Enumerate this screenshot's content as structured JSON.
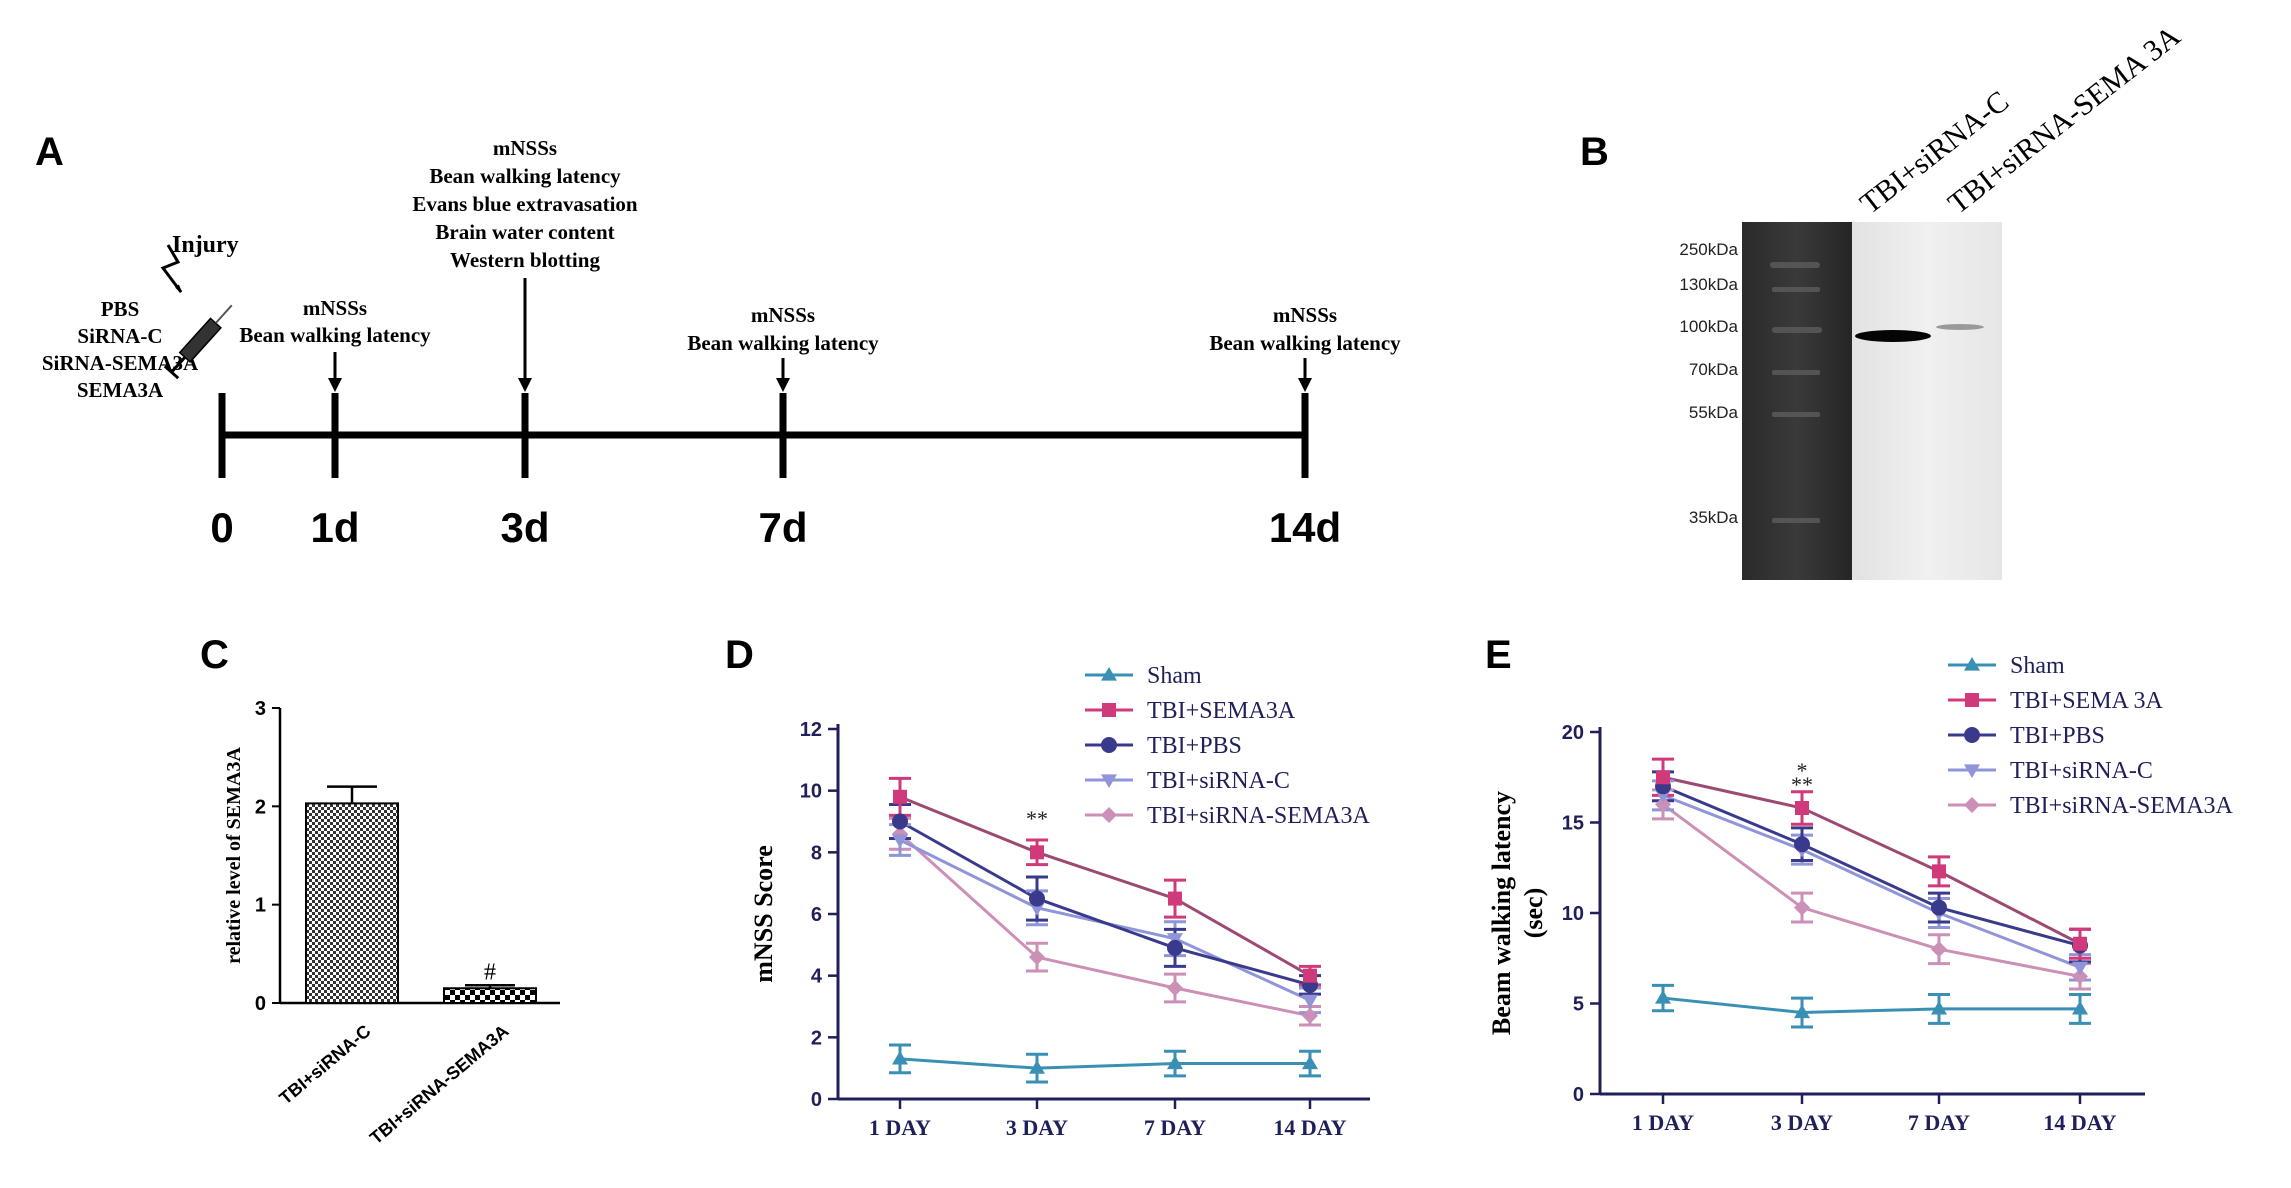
{
  "panels": {
    "a": "A",
    "b": "B",
    "c": "C",
    "d": "D",
    "e": "E"
  },
  "timeline": {
    "ticks": [
      "0",
      "1d",
      "3d",
      "7d",
      "14d"
    ],
    "treatments": [
      "PBS",
      "SiRNA-C",
      "SiRNA-SEMA3A",
      "SEMA3A"
    ],
    "injury_label": "Injury",
    "notes": {
      "d1": [
        "mNSSs",
        "Bean walking latency"
      ],
      "d3": [
        "mNSSs",
        "Bean walking latency",
        "Evans blue extravasation",
        "Brain water content",
        "Western blotting"
      ],
      "d7": [
        "mNSSs",
        "Bean walking latency"
      ],
      "d14": [
        "mNSSs",
        "Bean walking latency"
      ]
    }
  },
  "blot": {
    "lanes": [
      "TBI+siRNA-C",
      "TBI+siRNA-SEMA 3A"
    ],
    "markers": [
      "250kDa",
      "130kDa",
      "100kDa",
      "70kDa",
      "55kDa",
      "35kDa"
    ]
  },
  "colors": {
    "Sham": "#3a8fb5",
    "TBI+SEMA3A": "#d0397a",
    "TBI+PBS": "#3a3a8c",
    "TBI+siRNA-C": "#8f95d8",
    "TBI+siRNA-SEMA3A": "#cc8fb5",
    "line_sema3a": "#9c4a72"
  },
  "chart_data": [
    {
      "id": "C",
      "type": "bar",
      "categories": [
        "TBI+siRNA-C",
        "TBI+siRNA-SEMA3A"
      ],
      "values": [
        2.03,
        0.15
      ],
      "errors": [
        0.17,
        0.03
      ],
      "annotations": [
        "",
        "#"
      ],
      "ylabel": "relative level of SEMA3A",
      "ylim": [
        0,
        3
      ],
      "yticks": [
        "0",
        "1",
        "2",
        "3"
      ]
    },
    {
      "id": "D",
      "type": "line",
      "categories": [
        "1 DAY",
        "3 DAY",
        "7 DAY",
        "14 DAY"
      ],
      "ylabel": "mNSS Score",
      "ylim": [
        0,
        12
      ],
      "yticks": [
        "0",
        "2",
        "4",
        "6",
        "8",
        "10",
        "12"
      ],
      "significance": "**",
      "series": [
        {
          "name": "Sham",
          "values": [
            1.3,
            1.0,
            1.15,
            1.15
          ],
          "err": [
            0.45,
            0.45,
            0.4,
            0.4
          ]
        },
        {
          "name": "TBI+SEMA3A",
          "values": [
            9.8,
            8.0,
            6.5,
            4.0
          ],
          "err": [
            0.6,
            0.4,
            0.6,
            0.3
          ]
        },
        {
          "name": "TBI+PBS",
          "values": [
            9.0,
            6.5,
            4.9,
            3.7
          ],
          "err": [
            0.55,
            0.7,
            0.6,
            0.3
          ]
        },
        {
          "name": "TBI+siRNA-C",
          "values": [
            8.4,
            6.2,
            5.2,
            3.2
          ],
          "err": [
            0.5,
            0.55,
            0.55,
            0.4
          ]
        },
        {
          "name": "TBI+siRNA-SEMA3A",
          "values": [
            8.6,
            4.6,
            3.6,
            2.7
          ],
          "err": [
            0.5,
            0.45,
            0.45,
            0.3
          ]
        }
      ],
      "legend": [
        "Sham",
        "TBI+SEMA3A",
        "TBI+PBS",
        "TBI+siRNA-C",
        "TBI+siRNA-SEMA3A"
      ]
    },
    {
      "id": "E",
      "type": "line",
      "categories": [
        "1 DAY",
        "3 DAY",
        "7 DAY",
        "14 DAY"
      ],
      "ylabel": "Beam walking latency",
      "ylabel2": "(sec)",
      "ylim": [
        0,
        20
      ],
      "yticks": [
        "0",
        "5",
        "10",
        "15",
        "20"
      ],
      "significance": "*",
      "significance2": "**",
      "series": [
        {
          "name": "Sham",
          "values": [
            5.3,
            4.5,
            4.7,
            4.7
          ],
          "err": [
            0.7,
            0.8,
            0.8,
            0.8
          ]
        },
        {
          "name": "TBI+SEMA 3A",
          "values": [
            17.5,
            15.8,
            12.3,
            8.3
          ],
          "err": [
            1.0,
            0.9,
            0.8,
            0.8
          ]
        },
        {
          "name": "TBI+PBS",
          "values": [
            17.0,
            13.8,
            10.3,
            8.2
          ],
          "err": [
            0.8,
            0.9,
            0.8,
            0.9
          ]
        },
        {
          "name": "TBI+siRNA-C",
          "values": [
            16.5,
            13.5,
            10.0,
            7.0
          ],
          "err": [
            0.8,
            0.8,
            0.8,
            0.7
          ]
        },
        {
          "name": "TBI+siRNA-SEMA3A",
          "values": [
            16.0,
            10.3,
            8.0,
            6.5
          ],
          "err": [
            0.8,
            0.8,
            0.8,
            0.7
          ]
        }
      ],
      "legend": [
        "Sham",
        "TBI+SEMA 3A",
        "TBI+PBS",
        "TBI+siRNA-C",
        "TBI+siRNA-SEMA3A"
      ]
    }
  ]
}
